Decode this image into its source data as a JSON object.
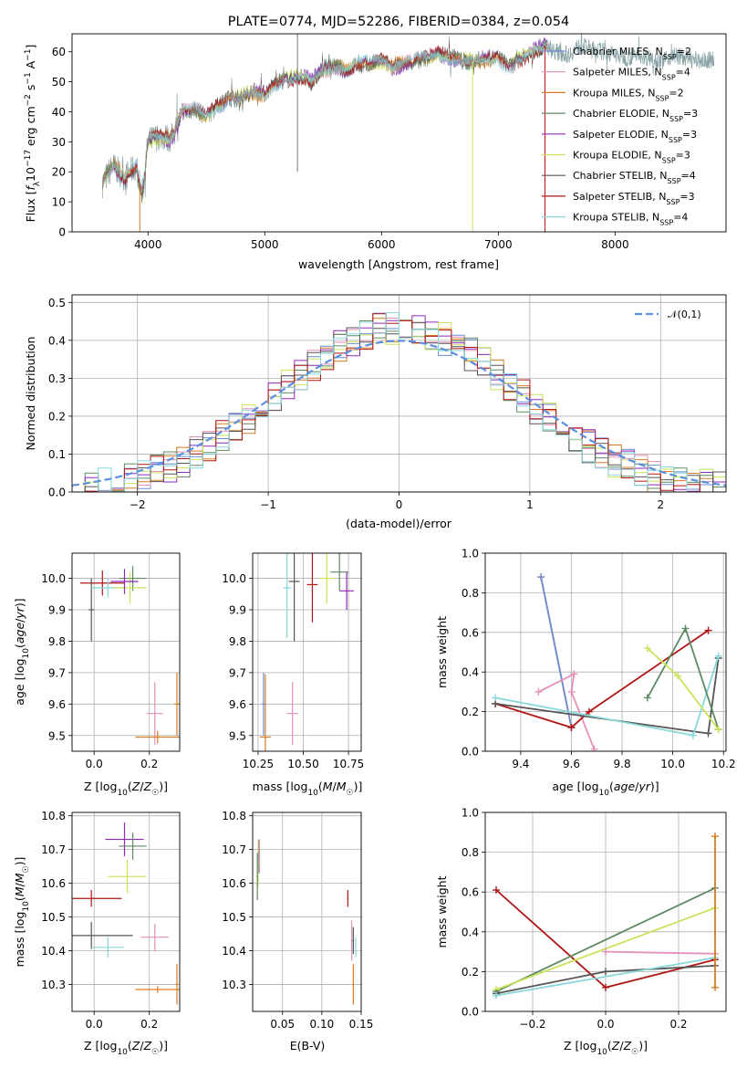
{
  "figure": {
    "title": "PLATE=0774, MJD=52286, FIBERID=0384, z=0.054"
  },
  "legend_names": [
    "Chabrier MILES, N_SSP=2",
    "Salpeter MILES, N_SSP=4",
    "Kroupa MILES, N_SSP=2",
    "Chabrier ELODIE, N_SSP=3",
    "Salpeter ELODIE, N_SSP=3",
    "Kroupa ELODIE, N_SSP=3",
    "Chabrier STELIB, N_SSP=4",
    "Salpeter STELIB, N_SSP=3",
    "Kroupa STELIB, N_SSP=4"
  ],
  "legend_colors": [
    "#6c8ed6",
    "#e58fb9",
    "#d97b22",
    "#5e8a62",
    "#8e2ab8",
    "#c9e35a",
    "#555555",
    "#b01515",
    "#86d8da"
  ],
  "chart_data": [
    {
      "type": "line",
      "title": "PLATE=0774, MJD=52286, FIBERID=0384, z=0.054",
      "xlabel": "wavelength [Angstrom, rest frame]",
      "ylabel": "Flux [f_λ 10^-17 erg cm^-2 s^-1 A^-1]",
      "xlim": [
        3350,
        8950
      ],
      "ylim": [
        0,
        66
      ],
      "xticks": [
        "4000",
        "5000",
        "6000",
        "7000",
        "8000"
      ],
      "yticks": [
        "0",
        "10",
        "20",
        "30",
        "40",
        "50",
        "60"
      ],
      "legend": "top-right",
      "series_names": [
        "Chabrier MILES, N_SSP=2",
        "Salpeter MILES, N_SSP=4",
        "Kroupa MILES, N_SSP=2",
        "Chabrier ELODIE, N_SSP=3",
        "Salpeter ELODIE, N_SSP=3",
        "Kroupa ELODIE, N_SSP=3",
        "Chabrier STELIB, N_SSP=4",
        "Salpeter STELIB, N_SSP=3",
        "Kroupa STELIB, N_SSP=4"
      ],
      "spectrum_envelope": {
        "x": [
          3610,
          3700,
          3800,
          3900,
          3950,
          4000,
          4100,
          4200,
          4300,
          4400,
          4500,
          4600,
          4700,
          4800,
          4900,
          5000,
          5100,
          5200,
          5300,
          5400,
          5500,
          5600,
          5700,
          5800,
          5900,
          6000,
          6100,
          6200,
          6300,
          6400,
          6500,
          6600,
          6700,
          6800,
          6900,
          7000,
          7100,
          7200,
          7300,
          7400,
          7500,
          7600,
          7700,
          7800,
          7900,
          8000,
          8100,
          8200,
          8300,
          8400,
          8500,
          8600,
          8700,
          8800,
          8850
        ],
        "y": [
          16,
          22,
          18,
          22,
          12,
          30,
          32,
          31,
          40,
          41,
          38,
          42,
          44,
          45,
          47,
          46,
          50,
          51,
          52,
          50,
          54,
          55,
          54,
          56,
          56,
          57,
          55,
          56,
          57,
          58,
          59,
          58,
          57,
          57,
          58,
          58,
          55,
          58,
          60,
          62,
          60,
          59,
          62,
          61,
          60,
          59,
          58,
          59,
          58,
          57,
          59,
          58,
          57,
          57,
          58
        ]
      },
      "dropouts": [
        {
          "x": 3930,
          "to": 0
        },
        {
          "x": 6780,
          "to": 0
        },
        {
          "x": 7400,
          "to": 0
        }
      ]
    },
    {
      "type": "histogram",
      "xlabel": "(data-model)/error",
      "ylabel": "Normed distribution",
      "xlim": [
        -2.5,
        2.5
      ],
      "ylim": [
        0,
        0.52
      ],
      "xticks": [
        "−2",
        "−1",
        "0",
        "1",
        "2"
      ],
      "yticks": [
        "0.0",
        "0.1",
        "0.2",
        "0.3",
        "0.4",
        "0.5"
      ],
      "legend": "top-right",
      "legend_label": "𝒩(0,1)",
      "reference_curve": "normal pdf, mean 0, sigma 1"
    },
    {
      "type": "scatter",
      "xlabel": "Z [log10(Z/Z☉)]",
      "ylabel": "age  [log10(age/yr)]",
      "xlim": [
        -0.08,
        0.31
      ],
      "ylim": [
        9.45,
        10.08
      ],
      "xticks": [
        "0.0",
        "0.2"
      ],
      "yticks": [
        "9.5",
        "9.6",
        "9.7",
        "9.8",
        "9.9",
        "10.0"
      ],
      "points": [
        {
          "x": 0.22,
          "y": 9.57,
          "xerr": 0.03,
          "yerr": 0.1,
          "color": "#e58fb9"
        },
        {
          "x": 0.23,
          "y": 9.495,
          "xerr": 0.08,
          "yerr": 0.02,
          "color": "#d97b22"
        },
        {
          "x": 0.3,
          "y": 9.6,
          "xerr": 0.01,
          "yerr": 0.1,
          "color": "#d97b22"
        },
        {
          "x": 0.03,
          "y": 9.985,
          "xerr": 0.08,
          "yerr": 0.04,
          "color": "#b01515"
        },
        {
          "x": -0.01,
          "y": 9.9,
          "xerr": 0.01,
          "yerr": 0.1,
          "color": "#555555"
        },
        {
          "x": 0.05,
          "y": 9.97,
          "xerr": 0.06,
          "yerr": 0.03,
          "color": "#86d8da"
        },
        {
          "x": 0.14,
          "y": 10.0,
          "xerr": 0.05,
          "yerr": 0.04,
          "color": "#5e8a62"
        },
        {
          "x": 0.13,
          "y": 9.97,
          "xerr": 0.06,
          "yerr": 0.05,
          "color": "#c9e35a"
        },
        {
          "x": 0.11,
          "y": 9.99,
          "xerr": 0.05,
          "yerr": 0.04,
          "color": "#8e2ab8"
        }
      ]
    },
    {
      "type": "scatter",
      "xlabel": "mass [log10(M/M☉)]",
      "xlim": [
        10.22,
        10.82
      ],
      "ylim": [
        9.45,
        10.08
      ],
      "xticks": [
        "10.25",
        "10.50",
        "10.75"
      ],
      "yticks": [
        "9.5",
        "9.6",
        "9.7",
        "9.8",
        "9.9",
        "10.0"
      ],
      "points": [
        {
          "x": 10.44,
          "y": 9.57,
          "xerr": 0.03,
          "yerr": 0.1,
          "color": "#e58fb9"
        },
        {
          "x": 10.29,
          "y": 9.495,
          "xerr": 0.03,
          "yerr": 0.2,
          "color": "#d97b22"
        },
        {
          "x": 10.28,
          "y": 9.6,
          "xerr": 0.01,
          "yerr": 0.1,
          "color": "#6c8ed6"
        },
        {
          "x": 10.55,
          "y": 9.98,
          "xerr": 0.03,
          "yerr": 0.12,
          "color": "#b01515"
        },
        {
          "x": 10.45,
          "y": 9.99,
          "xerr": 0.03,
          "yerr": 0.19,
          "color": "#555555"
        },
        {
          "x": 10.41,
          "y": 9.97,
          "xerr": 0.02,
          "yerr": 0.16,
          "color": "#86d8da"
        },
        {
          "x": 10.7,
          "y": 10.02,
          "xerr": 0.05,
          "yerr": 0.06,
          "color": "#5e8a62"
        },
        {
          "x": 10.63,
          "y": 10.0,
          "xerr": 0.04,
          "yerr": 0.08,
          "color": "#c9e35a"
        },
        {
          "x": 10.74,
          "y": 9.96,
          "xerr": 0.04,
          "yerr": 0.06,
          "color": "#8e2ab8"
        }
      ]
    },
    {
      "type": "line",
      "xlabel": "age  [log10(age/yr)]",
      "ylabel": "mass weight",
      "xlim": [
        9.26,
        10.21
      ],
      "ylim": [
        0,
        1
      ],
      "xticks": [
        "9.4",
        "9.6",
        "9.8",
        "10.0",
        "10.2"
      ],
      "yticks": [
        "0.0",
        "0.2",
        "0.4",
        "0.6",
        "0.8",
        "1.0"
      ],
      "series": [
        {
          "name": "Kroupa MILES",
          "color": "#d97b22",
          "points": [
            [
              9.48,
              0.88
            ],
            [
              9.6,
              0.12
            ]
          ]
        },
        {
          "name": "Chabrier MILES",
          "color": "#6c8ed6",
          "points": [
            [
              9.48,
              0.88
            ],
            [
              9.6,
              0.12
            ]
          ]
        },
        {
          "name": "Salpeter MILES",
          "color": "#e58fb9",
          "points": [
            [
              9.47,
              0.3
            ],
            [
              9.61,
              0.39
            ],
            [
              9.6,
              0.3
            ],
            [
              9.69,
              0.01
            ]
          ]
        },
        {
          "name": "Salpeter STELIB",
          "color": "#b01515",
          "points": [
            [
              9.3,
              0.24
            ],
            [
              9.6,
              0.12
            ],
            [
              9.67,
              0.2
            ],
            [
              10.14,
              0.61
            ]
          ]
        },
        {
          "name": "Chabrier STELIB",
          "color": "#555555",
          "points": [
            [
              9.3,
              0.24
            ],
            [
              10.14,
              0.09
            ],
            [
              10.18,
              0.47
            ]
          ]
        },
        {
          "name": "Kroupa STELIB",
          "color": "#86d8da",
          "points": [
            [
              9.3,
              0.27
            ],
            [
              10.08,
              0.08
            ],
            [
              10.18,
              0.48
            ]
          ]
        },
        {
          "name": "Chabrier ELODIE",
          "color": "#5e8a62",
          "points": [
            [
              9.9,
              0.27
            ],
            [
              10.05,
              0.62
            ],
            [
              10.18,
              0.11
            ]
          ]
        },
        {
          "name": "Kroupa ELODIE",
          "color": "#c9e35a",
          "points": [
            [
              9.9,
              0.52
            ],
            [
              10.02,
              0.38
            ],
            [
              10.18,
              0.11
            ]
          ]
        }
      ]
    },
    {
      "type": "scatter",
      "xlabel": "Z [log10(Z/Z☉)]",
      "ylabel": "mass [log10(M/M☉)]",
      "xlim": [
        -0.08,
        0.31
      ],
      "ylim": [
        10.22,
        10.81
      ],
      "xticks": [
        "0.0",
        "0.2"
      ],
      "yticks": [
        "10.3",
        "10.4",
        "10.5",
        "10.6",
        "10.7",
        "10.8"
      ],
      "points": [
        {
          "x": 0.11,
          "y": 10.73,
          "xerr": 0.07,
          "yerr": 0.05,
          "color": "#8e2ab8"
        },
        {
          "x": 0.14,
          "y": 10.71,
          "xerr": 0.05,
          "yerr": 0.04,
          "color": "#5e8a62"
        },
        {
          "x": 0.12,
          "y": 10.62,
          "xerr": 0.07,
          "yerr": 0.05,
          "color": "#c9e35a"
        },
        {
          "x": -0.01,
          "y": 10.555,
          "xerr": 0.11,
          "yerr": 0.025,
          "color": "#b01515"
        },
        {
          "x": -0.01,
          "y": 10.445,
          "xerr": 0.15,
          "yerr": 0.04,
          "color": "#555555"
        },
        {
          "x": 0.05,
          "y": 10.41,
          "xerr": 0.06,
          "yerr": 0.03,
          "color": "#86d8da"
        },
        {
          "x": 0.22,
          "y": 10.44,
          "xerr": 0.05,
          "yerr": 0.04,
          "color": "#e58fb9"
        },
        {
          "x": 0.23,
          "y": 10.285,
          "xerr": 0.08,
          "yerr": 0.01,
          "color": "#d97b22"
        },
        {
          "x": 0.3,
          "y": 10.3,
          "xerr": 0.005,
          "yerr": 0.06,
          "color": "#d97b22"
        }
      ]
    },
    {
      "type": "scatter",
      "xlabel": "E(B-V)",
      "xlim": [
        0.012,
        0.15
      ],
      "ylim": [
        10.22,
        10.81
      ],
      "xticks": [
        "0.05",
        "0.10",
        "0.15"
      ],
      "yticks": [
        "10.3",
        "10.4",
        "10.5",
        "10.6",
        "10.7",
        "10.8"
      ],
      "points": [
        {
          "x": 0.02,
          "y": 10.68,
          "xerr": 0.001,
          "yerr": 0.05,
          "color": "#8e2ab8"
        },
        {
          "x": 0.019,
          "y": 10.66,
          "xerr": 0.001,
          "yerr": 0.07,
          "color": "#c9e35a"
        },
        {
          "x": 0.018,
          "y": 10.62,
          "xerr": 0.001,
          "yerr": 0.07,
          "color": "#5e8a62"
        },
        {
          "x": 0.133,
          "y": 10.555,
          "xerr": 0.001,
          "yerr": 0.025,
          "color": "#b01515"
        },
        {
          "x": 0.138,
          "y": 10.43,
          "xerr": 0.001,
          "yerr": 0.06,
          "color": "#e58fb9"
        },
        {
          "x": 0.14,
          "y": 10.43,
          "xerr": 0.001,
          "yerr": 0.04,
          "color": "#555555"
        },
        {
          "x": 0.143,
          "y": 10.41,
          "xerr": 0.001,
          "yerr": 0.03,
          "color": "#86d8da"
        },
        {
          "x": 0.14,
          "y": 10.3,
          "xerr": 0.001,
          "yerr": 0.06,
          "color": "#d97b22"
        }
      ]
    },
    {
      "type": "line",
      "xlabel": "Z [log10(Z/Z☉)]",
      "ylabel": "mass weight",
      "xlim": [
        -0.33,
        0.33
      ],
      "ylim": [
        0,
        1
      ],
      "xticks": [
        "−0.2",
        "0.0",
        "0.2"
      ],
      "yticks": [
        "0.0",
        "0.2",
        "0.4",
        "0.6",
        "0.8",
        "1.0"
      ],
      "series": [
        {
          "name": "Salpeter STELIB",
          "color": "#b01515",
          "points": [
            [
              -0.3,
              0.61
            ],
            [
              0.0,
              0.12
            ],
            [
              0.3,
              0.26
            ]
          ]
        },
        {
          "name": "Chabrier ELODIE",
          "color": "#5e8a62",
          "points": [
            [
              -0.3,
              0.1
            ],
            [
              0.3,
              0.62
            ]
          ]
        },
        {
          "name": "Kroupa ELODIE",
          "color": "#c9e35a",
          "points": [
            [
              -0.3,
              0.11
            ],
            [
              0.3,
              0.52
            ]
          ]
        },
        {
          "name": "Chabrier STELIB",
          "color": "#555555",
          "points": [
            [
              -0.3,
              0.09
            ],
            [
              0.0,
              0.2
            ],
            [
              0.3,
              0.23
            ]
          ]
        },
        {
          "name": "Kroupa STELIB",
          "color": "#86d8da",
          "points": [
            [
              -0.3,
              0.08
            ],
            [
              0.3,
              0.27
            ]
          ]
        },
        {
          "name": "Salpeter MILES",
          "color": "#e58fb9",
          "points": [
            [
              0.0,
              0.3
            ],
            [
              0.3,
              0.29
            ]
          ]
        },
        {
          "name": "Kroupa MILES",
          "color": "#d97b22",
          "points": [
            [
              0.3,
              0.12
            ],
            [
              0.3,
              0.88
            ]
          ]
        }
      ]
    }
  ]
}
